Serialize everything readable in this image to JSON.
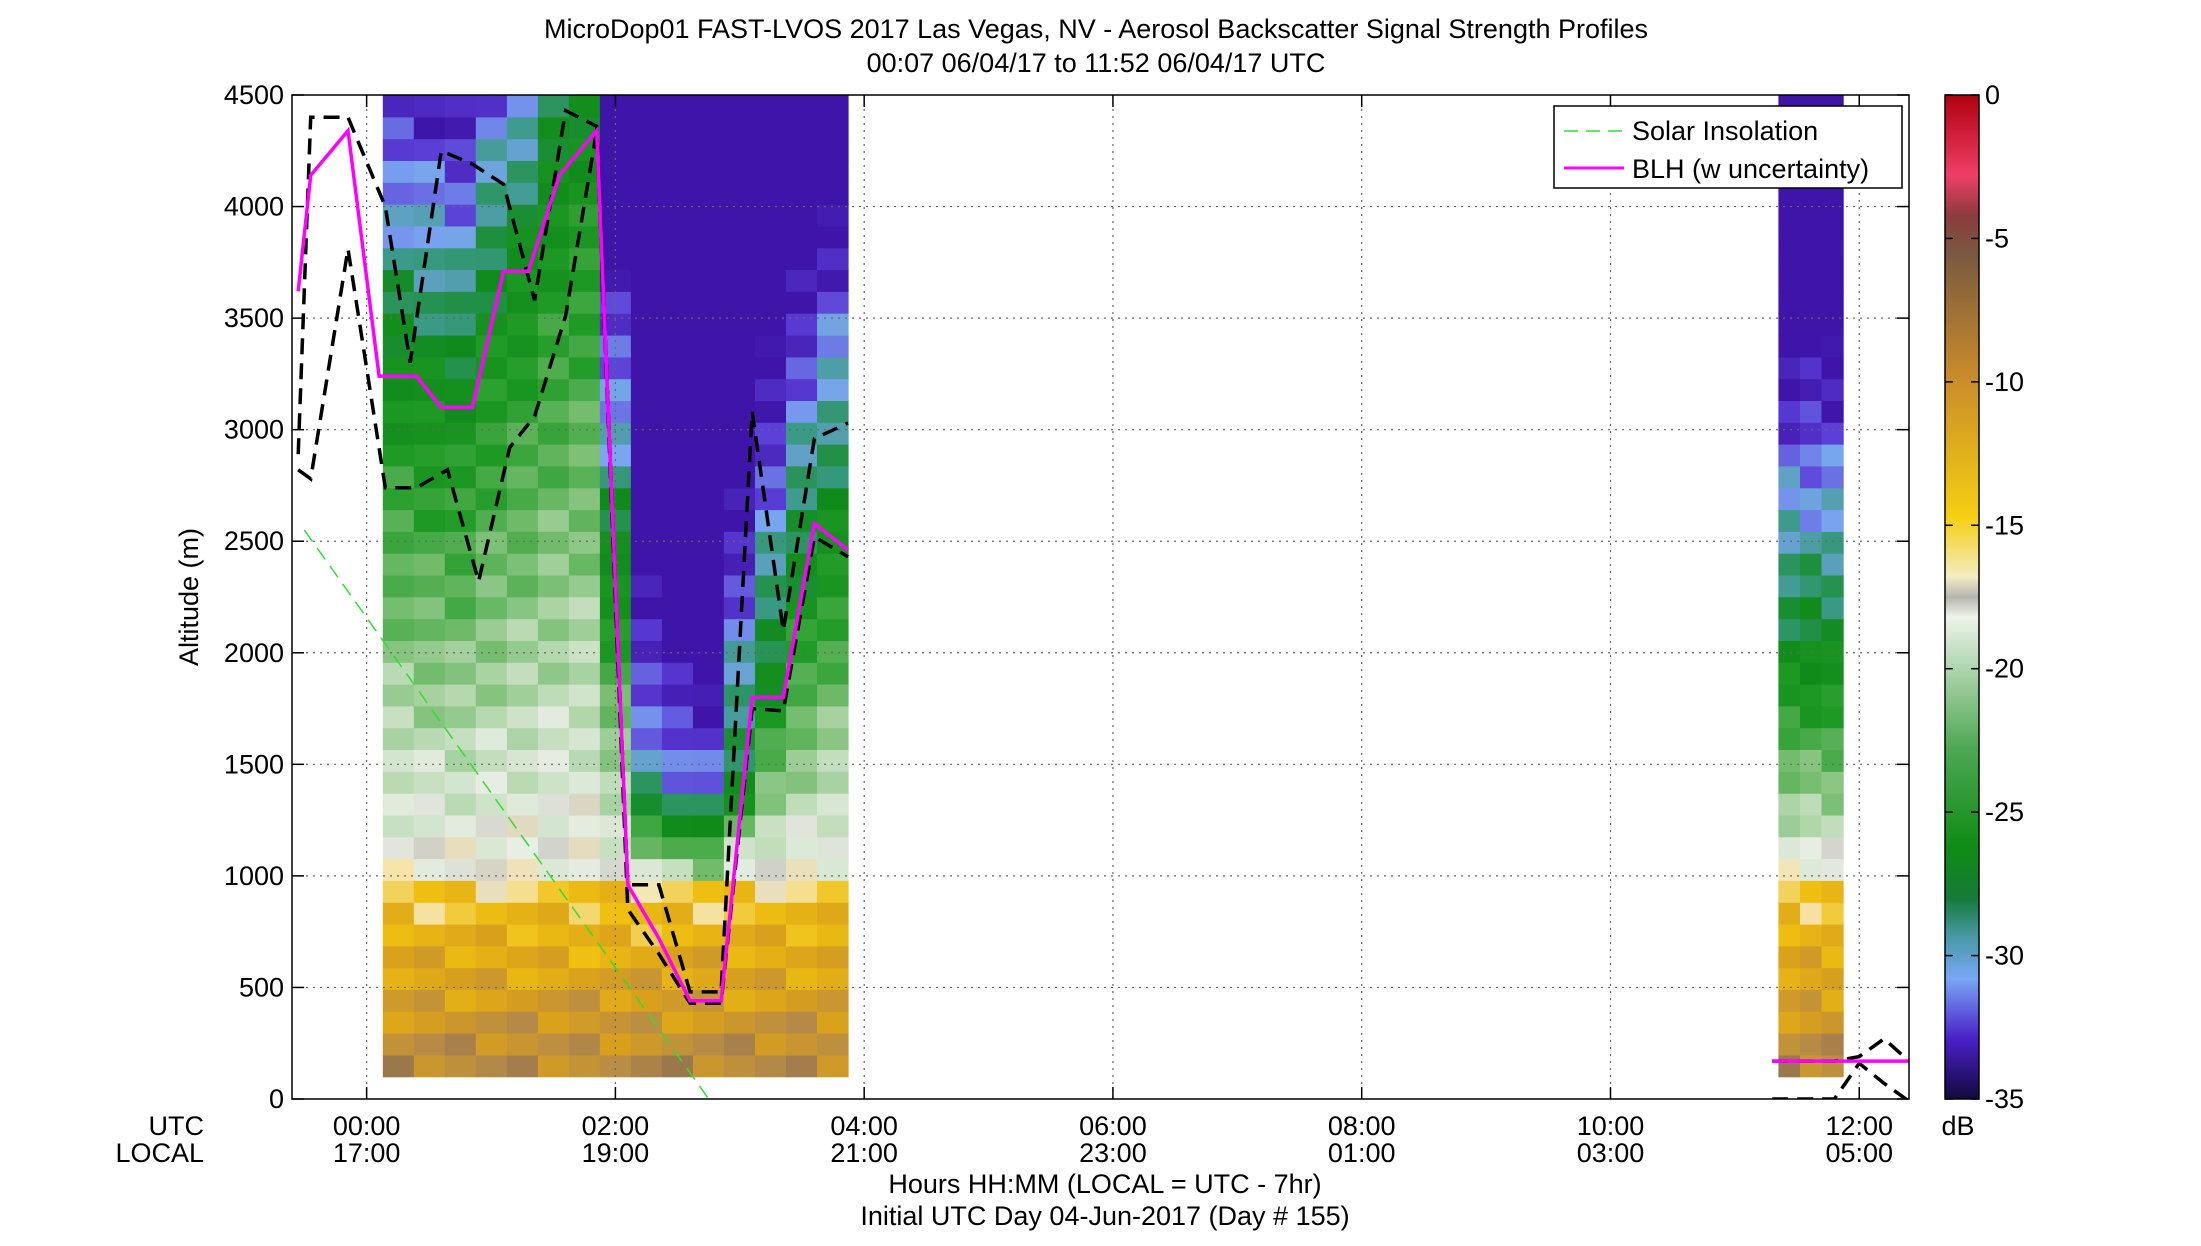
{
  "chart_data": {
    "type": "heatmap",
    "title": "MicroDop01 FAST-LVOS 2017 Las Vegas, NV - Aerosol Backscatter Signal Strength Profiles",
    "subtitle": "00:07 06/04/17 to 11:52 06/04/17  UTC",
    "ylabel": "Altitude (m)",
    "xlabel": "Hours HH:MM  (LOCAL = UTC - 7hr)",
    "xlabel2": "Initial UTC Day 04-Jun-2017 (Day # 155)",
    "x_row_labels": [
      "UTC",
      "LOCAL"
    ],
    "xlim_hours": [
      -0.6,
      12.4
    ],
    "ylim": [
      0,
      4500
    ],
    "y_ticks": [
      0,
      500,
      1000,
      1500,
      2000,
      2500,
      3000,
      3500,
      4000,
      4500
    ],
    "x_ticks": [
      {
        "hour": 0,
        "utc": "00:00",
        "local": "17:00"
      },
      {
        "hour": 2,
        "utc": "02:00",
        "local": "19:00"
      },
      {
        "hour": 4,
        "utc": "04:00",
        "local": "21:00"
      },
      {
        "hour": 6,
        "utc": "06:00",
        "local": "23:00"
      },
      {
        "hour": 8,
        "utc": "08:00",
        "local": "01:00"
      },
      {
        "hour": 10,
        "utc": "10:00",
        "local": "03:00"
      },
      {
        "hour": 12,
        "utc": "12:00",
        "local": "05:00"
      }
    ],
    "grid": true,
    "legend_position": "top-right",
    "legend": [
      "Solar Insolation",
      "BLH (w uncertainty)"
    ],
    "colorbar": {
      "label": "dB",
      "range": [
        -35,
        0
      ],
      "ticks": [
        0,
        -5,
        -10,
        -15,
        -20,
        -25,
        -30,
        -35
      ]
    },
    "backscatter_segments": [
      {
        "start_hour": 0.13,
        "end_hour": 3.87,
        "columns": 15
      },
      {
        "start_hour": 11.35,
        "end_hour": 11.87,
        "columns": 3
      }
    ],
    "blh_altitude_m": [
      [
        -0.55,
        3620
      ],
      [
        -0.45,
        4140
      ],
      [
        -0.15,
        4340
      ],
      [
        0.1,
        3240
      ],
      [
        0.4,
        3240
      ],
      [
        0.6,
        3100
      ],
      [
        0.85,
        3100
      ],
      [
        1.1,
        3710
      ],
      [
        1.3,
        3710
      ],
      [
        1.55,
        4140
      ],
      [
        1.85,
        4340
      ],
      [
        2.1,
        960
      ],
      [
        2.35,
        720
      ],
      [
        2.6,
        440
      ],
      [
        2.85,
        440
      ],
      [
        3.1,
        1800
      ],
      [
        3.35,
        1800
      ],
      [
        3.6,
        2580
      ],
      [
        3.87,
        2460
      ],
      [
        11.3,
        170
      ],
      [
        12.4,
        170
      ]
    ],
    "blh_upper_m": [
      [
        -0.55,
        2890
      ],
      [
        -0.45,
        4400
      ],
      [
        -0.15,
        4400
      ],
      [
        0.15,
        4000
      ],
      [
        0.35,
        3300
      ],
      [
        0.6,
        4250
      ],
      [
        0.85,
        4190
      ],
      [
        1.1,
        4100
      ],
      [
        1.35,
        3580
      ],
      [
        1.6,
        4430
      ],
      [
        1.85,
        4360
      ],
      [
        2.1,
        960
      ],
      [
        2.35,
        960
      ],
      [
        2.6,
        480
      ],
      [
        2.85,
        480
      ],
      [
        3.1,
        3080
      ],
      [
        3.35,
        2100
      ],
      [
        3.6,
        2960
      ],
      [
        3.87,
        3030
      ],
      [
        11.3,
        170
      ],
      [
        11.8,
        170
      ],
      [
        12.0,
        190
      ],
      [
        12.2,
        270
      ],
      [
        12.4,
        170
      ]
    ],
    "blh_lower_m": [
      [
        -0.55,
        2820
      ],
      [
        -0.45,
        2780
      ],
      [
        -0.15,
        3810
      ],
      [
        0.15,
        2740
      ],
      [
        0.4,
        2740
      ],
      [
        0.65,
        2820
      ],
      [
        0.9,
        2320
      ],
      [
        1.15,
        2920
      ],
      [
        1.35,
        3060
      ],
      [
        1.6,
        3510
      ],
      [
        1.85,
        4340
      ],
      [
        2.1,
        850
      ],
      [
        2.35,
        650
      ],
      [
        2.6,
        430
      ],
      [
        2.85,
        430
      ],
      [
        3.1,
        1750
      ],
      [
        3.35,
        1740
      ],
      [
        3.6,
        2520
      ],
      [
        3.87,
        2430
      ],
      [
        11.3,
        0
      ],
      [
        11.8,
        0
      ],
      [
        12.0,
        160
      ],
      [
        12.2,
        70
      ],
      [
        12.4,
        -10
      ]
    ],
    "solar_insolation_m": [
      [
        -0.5,
        2550
      ],
      [
        2.75,
        0
      ]
    ]
  },
  "colors": {
    "blh": "#ff00ff",
    "uncertainty": "#000000",
    "solar": "#33dd33",
    "grid": "#666666"
  }
}
